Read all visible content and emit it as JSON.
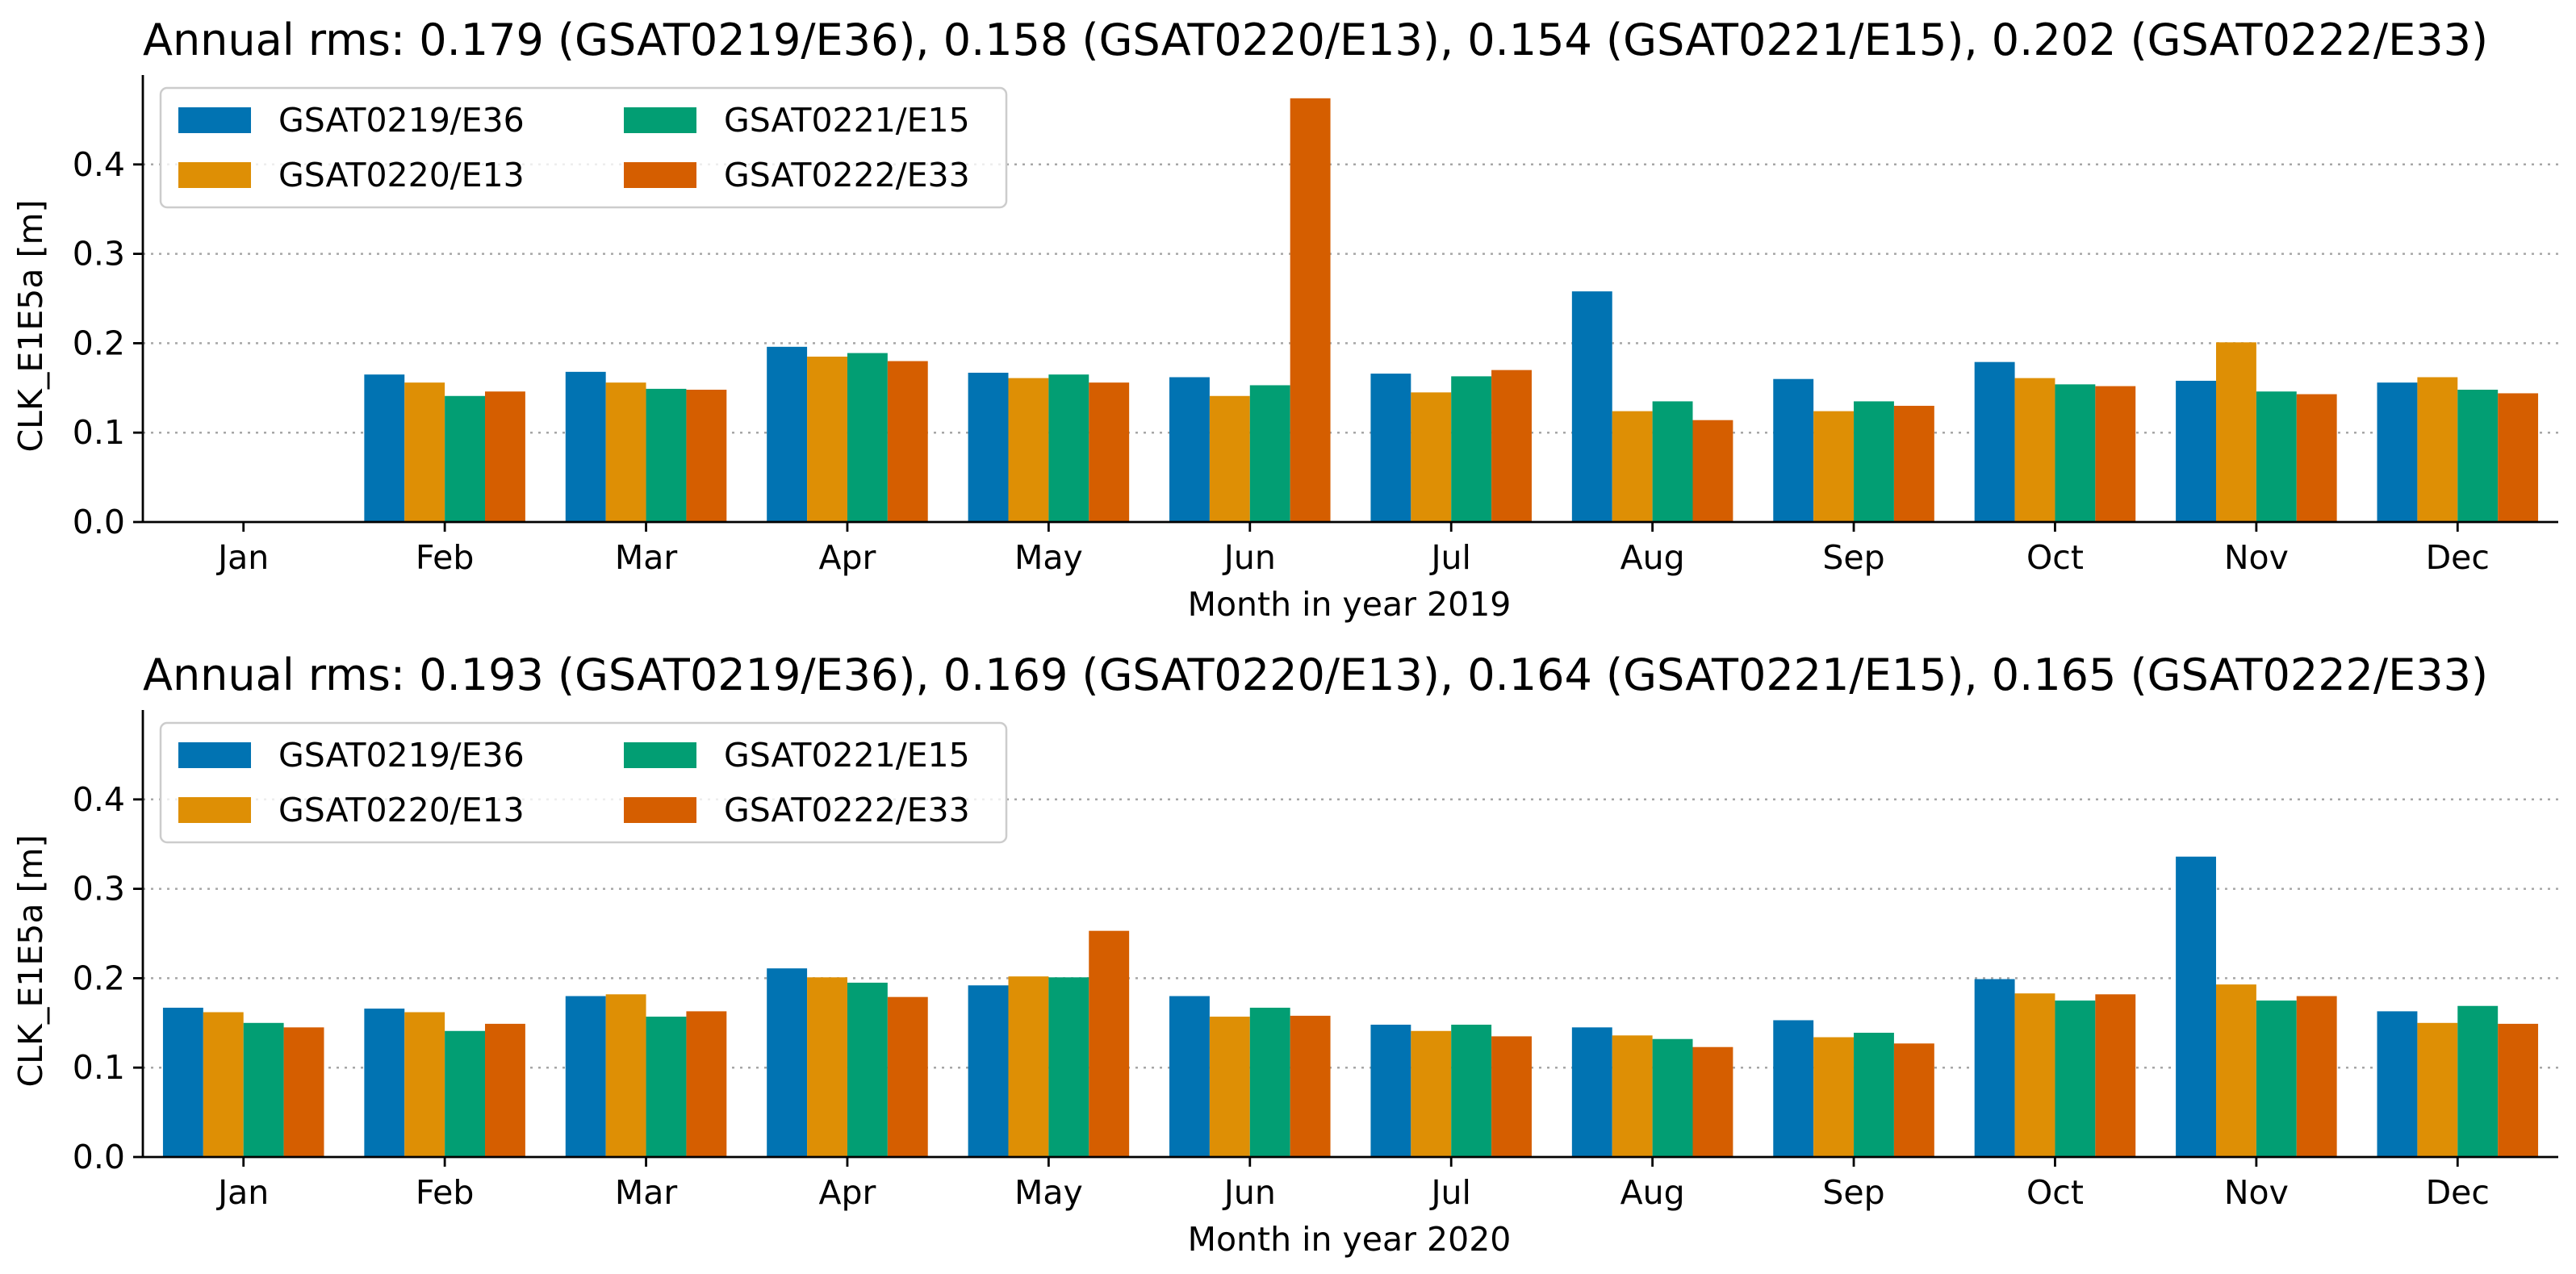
{
  "colors": {
    "GSAT0219/E36": "#0173b2",
    "GSAT0220/E13": "#de8f05",
    "GSAT0221/E15": "#029e73",
    "GSAT0222/E33": "#d55e00"
  },
  "chart_data": [
    {
      "type": "bar",
      "title": "Annual rms: 0.179 (GSAT0219/E36), 0.158 (GSAT0220/E13), 0.154 (GSAT0221/E15), 0.202 (GSAT0222/E33)",
      "xlabel": "Month in year 2019",
      "ylabel": "CLK_E1E5a [m]",
      "ylim": [
        0,
        0.5
      ],
      "yticks": [
        "0.0",
        "0.1",
        "0.2",
        "0.3",
        "0.4"
      ],
      "categories": [
        "Jan",
        "Feb",
        "Mar",
        "Apr",
        "May",
        "Jun",
        "Jul",
        "Aug",
        "Sep",
        "Oct",
        "Nov",
        "Dec"
      ],
      "legend": {
        "location": "upper-left",
        "columns": 2
      },
      "series": [
        {
          "name": "GSAT0219/E36",
          "values": [
            null,
            0.165,
            0.168,
            0.196,
            0.167,
            0.162,
            0.166,
            0.258,
            0.16,
            0.179,
            0.158,
            0.156
          ]
        },
        {
          "name": "GSAT0220/E13",
          "values": [
            null,
            0.156,
            0.156,
            0.185,
            0.161,
            0.141,
            0.145,
            0.124,
            0.124,
            0.161,
            0.201,
            0.162
          ]
        },
        {
          "name": "GSAT0221/E15",
          "values": [
            null,
            0.141,
            0.149,
            0.189,
            0.165,
            0.153,
            0.163,
            0.135,
            0.135,
            0.154,
            0.146,
            0.148
          ]
        },
        {
          "name": "GSAT0222/E33",
          "values": [
            null,
            0.146,
            0.148,
            0.18,
            0.156,
            0.474,
            0.17,
            0.114,
            0.13,
            0.152,
            0.143,
            0.144
          ]
        }
      ]
    },
    {
      "type": "bar",
      "title": "Annual rms: 0.193 (GSAT0219/E36), 0.169 (GSAT0220/E13), 0.164 (GSAT0221/E15), 0.165 (GSAT0222/E33)",
      "xlabel": "Month in year 2020",
      "ylabel": "CLK_E1E5a [m]",
      "ylim": [
        0,
        0.5
      ],
      "yticks": [
        "0.0",
        "0.1",
        "0.2",
        "0.3",
        "0.4"
      ],
      "categories": [
        "Jan",
        "Feb",
        "Mar",
        "Apr",
        "May",
        "Jun",
        "Jul",
        "Aug",
        "Sep",
        "Oct",
        "Nov",
        "Dec"
      ],
      "legend": {
        "location": "upper-left",
        "columns": 2
      },
      "series": [
        {
          "name": "GSAT0219/E36",
          "values": [
            0.167,
            0.166,
            0.18,
            0.211,
            0.192,
            0.18,
            0.148,
            0.145,
            0.153,
            0.199,
            0.336,
            0.163
          ]
        },
        {
          "name": "GSAT0220/E13",
          "values": [
            0.162,
            0.162,
            0.182,
            0.201,
            0.202,
            0.157,
            0.141,
            0.136,
            0.134,
            0.183,
            0.193,
            0.15
          ]
        },
        {
          "name": "GSAT0221/E15",
          "values": [
            0.15,
            0.141,
            0.157,
            0.195,
            0.201,
            0.167,
            0.148,
            0.132,
            0.139,
            0.175,
            0.175,
            0.169
          ]
        },
        {
          "name": "GSAT0222/E33",
          "values": [
            0.145,
            0.149,
            0.163,
            0.179,
            0.253,
            0.158,
            0.135,
            0.123,
            0.127,
            0.182,
            0.18,
            0.149
          ]
        }
      ]
    }
  ]
}
